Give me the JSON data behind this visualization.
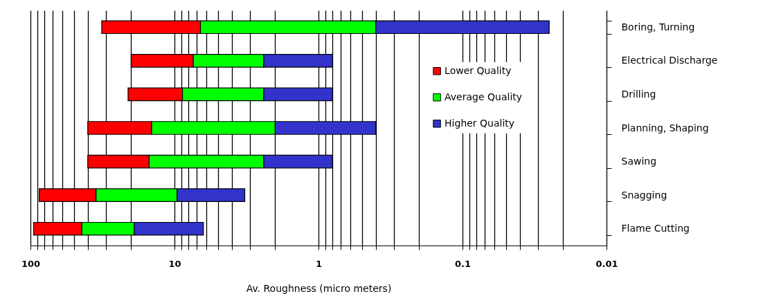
{
  "chart_data": {
    "type": "bar",
    "orientation": "horizontal",
    "categories": [
      "Boring, Turning",
      "Electrical Discharge",
      "Drilling",
      "Planning, Shaping",
      "Sawing",
      "Snagging",
      "Flame Cutting"
    ],
    "series": [
      {
        "name": "Lower Quality",
        "color": "#ff0000",
        "base": [
          6.6,
          7.4,
          8.8,
          14.4,
          15,
          35,
          44
        ],
        "values": [
          25.4,
          12.6,
          12.2,
          25.6,
          25,
          52,
          51
        ]
      },
      {
        "name": "Average Quality",
        "color": "#00ff00",
        "base": [
          0.4,
          2.4,
          2.4,
          2,
          2.4,
          9.6,
          19
        ],
        "values": [
          6.2,
          5,
          6.4,
          12.4,
          12.6,
          25.4,
          25
        ]
      },
      {
        "name": "Higher Quality",
        "color": "#3333cc",
        "base": [
          0.025,
          0.8,
          0.8,
          0.4,
          0.8,
          3.25,
          6.3
        ],
        "values": [
          0.375,
          1.6,
          1.6,
          1.6,
          1.6,
          6.35,
          12.7
        ]
      }
    ],
    "xlim": [
      100,
      0.01
    ],
    "xticks": [
      100,
      {
        "value": 90,
        "label": null
      },
      {
        "value": 80,
        "label": null
      },
      {
        "value": 70,
        "label": null
      },
      {
        "value": 60,
        "label": null
      },
      {
        "value": 50,
        "label": null
      },
      {
        "value": 40,
        "label": null
      },
      {
        "value": 30,
        "label": null
      },
      {
        "value": 20,
        "label": null
      },
      10,
      {
        "value": 9,
        "label": null
      },
      {
        "value": 8,
        "label": null
      },
      {
        "value": 7,
        "label": null
      },
      {
        "value": 6,
        "label": null
      },
      {
        "value": 5,
        "label": null
      },
      {
        "value": 4,
        "label": null
      },
      {
        "value": 3,
        "label": null
      },
      {
        "value": 2,
        "label": null
      },
      1,
      {
        "value": 0.9,
        "label": null
      },
      {
        "value": 0.8,
        "label": null
      },
      {
        "value": 0.7,
        "label": null
      },
      {
        "value": 0.6,
        "label": null
      },
      {
        "value": 0.5,
        "label": null
      },
      {
        "value": 0.4,
        "label": null
      },
      {
        "value": 0.3,
        "label": null
      },
      {
        "value": 0.2,
        "label": null
      },
      0.1,
      {
        "value": 0.09,
        "label": null
      },
      {
        "value": 0.08,
        "label": null
      },
      {
        "value": 0.07,
        "label": null
      },
      {
        "value": 0.06,
        "label": null
      },
      {
        "value": 0.05,
        "label": null
      },
      {
        "value": 0.04,
        "label": null
      },
      {
        "value": 0.03,
        "label": null
      },
      {
        "value": 0.02,
        "label": null
      },
      0.01
    ],
    "xlabel": "Av. Roughness (micro meters)",
    "log": "x",
    "grid": "x",
    "legend": "top right"
  }
}
